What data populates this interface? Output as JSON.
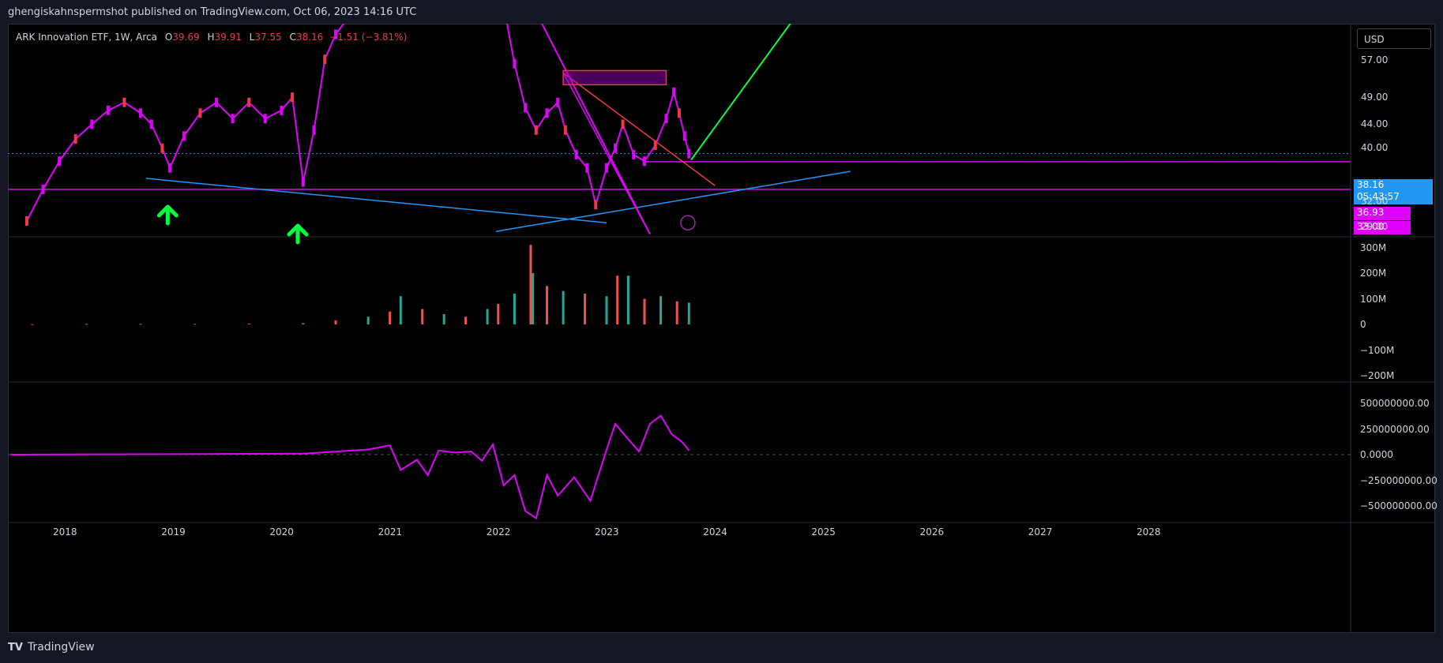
{
  "header": {
    "published": "ghengiskahnspermshot published on TradingView.com, Oct 06, 2023 14:16 UTC"
  },
  "legend": {
    "symbol": "ARK Innovation ETF, 1W, Arca",
    "open_label": "O",
    "open": "39.69",
    "high_label": "H",
    "high": "39.91",
    "low_label": "L",
    "low": "37.55",
    "close_label": "C",
    "close": "38.16",
    "change": "−1.51 (−3.81%)"
  },
  "currency": "USD",
  "price_tags": {
    "last_price": "38.16",
    "countdown": "05:43:57",
    "level_1": "36.93",
    "level_2": "33.00"
  },
  "footer": {
    "logo_text": "TradingView"
  },
  "colors": {
    "up": "#e100ff",
    "down": "#f23645",
    "support": "#2196f3",
    "trend_up": "#00ff3c",
    "resistance": "#e100ff",
    "background": "#000000"
  },
  "chart_data": [
    {
      "type": "line",
      "title": "ARK Innovation ETF, 1W, Arca",
      "x_ticks": [
        "2018",
        "2019",
        "2020",
        "2021",
        "2022",
        "2023",
        "2024",
        "2025",
        "2026",
        "2027",
        "2028"
      ],
      "y_ticks": [
        "57.00",
        "49.00",
        "44.00",
        "40.00",
        "32.00",
        "29.00"
      ],
      "series": [
        {
          "x": [
            2017.65,
            2017.8,
            2017.95,
            2018.1,
            2018.25,
            2018.4,
            2018.55,
            2018.7,
            2018.8,
            2018.9,
            2018.97,
            2019.1,
            2019.25,
            2019.4,
            2019.55,
            2019.7,
            2019.85,
            2020.0,
            2020.1,
            2020.2,
            2020.3,
            2020.4,
            2020.5,
            2020.58,
            2022.08,
            2022.15,
            2022.25,
            2022.35,
            2022.45,
            2022.55,
            2022.62,
            2022.72,
            2022.82,
            2022.9,
            2023.0,
            2023.08,
            2023.15,
            2023.25,
            2023.35,
            2023.45,
            2023.55,
            2023.62,
            2023.67,
            2023.72,
            2023.76
          ],
          "y": [
            29.0,
            33.0,
            37.0,
            40.5,
            43.0,
            45.5,
            47.0,
            45.0,
            43.0,
            39.0,
            36.0,
            41.0,
            45.0,
            47.0,
            44.0,
            47.0,
            44.0,
            45.5,
            48.0,
            34.0,
            42.0,
            56.0,
            62.0,
            65.0,
            65.0,
            55.0,
            46.0,
            42.0,
            45.0,
            47.0,
            42.0,
            38.0,
            36.0,
            31.0,
            36.0,
            39.0,
            43.0,
            38.0,
            37.0,
            39.5,
            44.0,
            49.0,
            45.0,
            41.0,
            38.16
          ]
        }
      ],
      "horizontal_levels": [
        38.16,
        36.93,
        33.0
      ]
    },
    {
      "type": "bar",
      "title": "Volume",
      "y_ticks": [
        "300M",
        "200M",
        "100M",
        "0",
        "−100M",
        "−200M"
      ],
      "x": [
        2017.7,
        2018.2,
        2018.7,
        2019.2,
        2019.7,
        2020.2,
        2020.5,
        2020.8,
        2021.0,
        2021.1,
        2021.3,
        2021.5,
        2021.7,
        2021.9,
        2022.0,
        2022.15,
        2022.3,
        2022.32,
        2022.45,
        2022.6,
        2022.8,
        2023.0,
        2023.1,
        2023.2,
        2023.35,
        2023.5,
        2023.65,
        2023.76
      ],
      "values": [
        1,
        2,
        2,
        2,
        3,
        5,
        15,
        30,
        50,
        110,
        60,
        40,
        30,
        60,
        80,
        120,
        310,
        200,
        150,
        130,
        120,
        110,
        190,
        190,
        100,
        110,
        90,
        85
      ]
    },
    {
      "type": "line",
      "title": "Oscillator",
      "y_ticks": [
        "500000000.00",
        "250000000.00",
        "0.0000",
        "−250000000.00",
        "−500000000.00"
      ],
      "x": [
        2017.5,
        2019.0,
        2020.2,
        2020.5,
        2020.8,
        2021.0,
        2021.1,
        2021.25,
        2021.35,
        2021.45,
        2021.6,
        2021.75,
        2021.85,
        2021.95,
        2022.05,
        2022.15,
        2022.25,
        2022.35,
        2022.45,
        2022.55,
        2022.7,
        2022.85,
        2023.0,
        2023.08,
        2023.2,
        2023.3,
        2023.4,
        2023.5,
        2023.6,
        2023.7,
        2023.76
      ],
      "values": [
        0,
        5000000,
        10000000,
        30000000,
        50000000,
        90000000,
        -150000000,
        -50000000,
        -200000000,
        40000000,
        20000000,
        30000000,
        -60000000,
        100000000,
        -300000000,
        -200000000,
        -550000000,
        -620000000,
        -200000000,
        -400000000,
        -220000000,
        -450000000,
        50000000,
        300000000,
        150000000,
        30000000,
        300000000,
        380000000,
        200000000,
        120000000,
        40000000
      ]
    }
  ]
}
